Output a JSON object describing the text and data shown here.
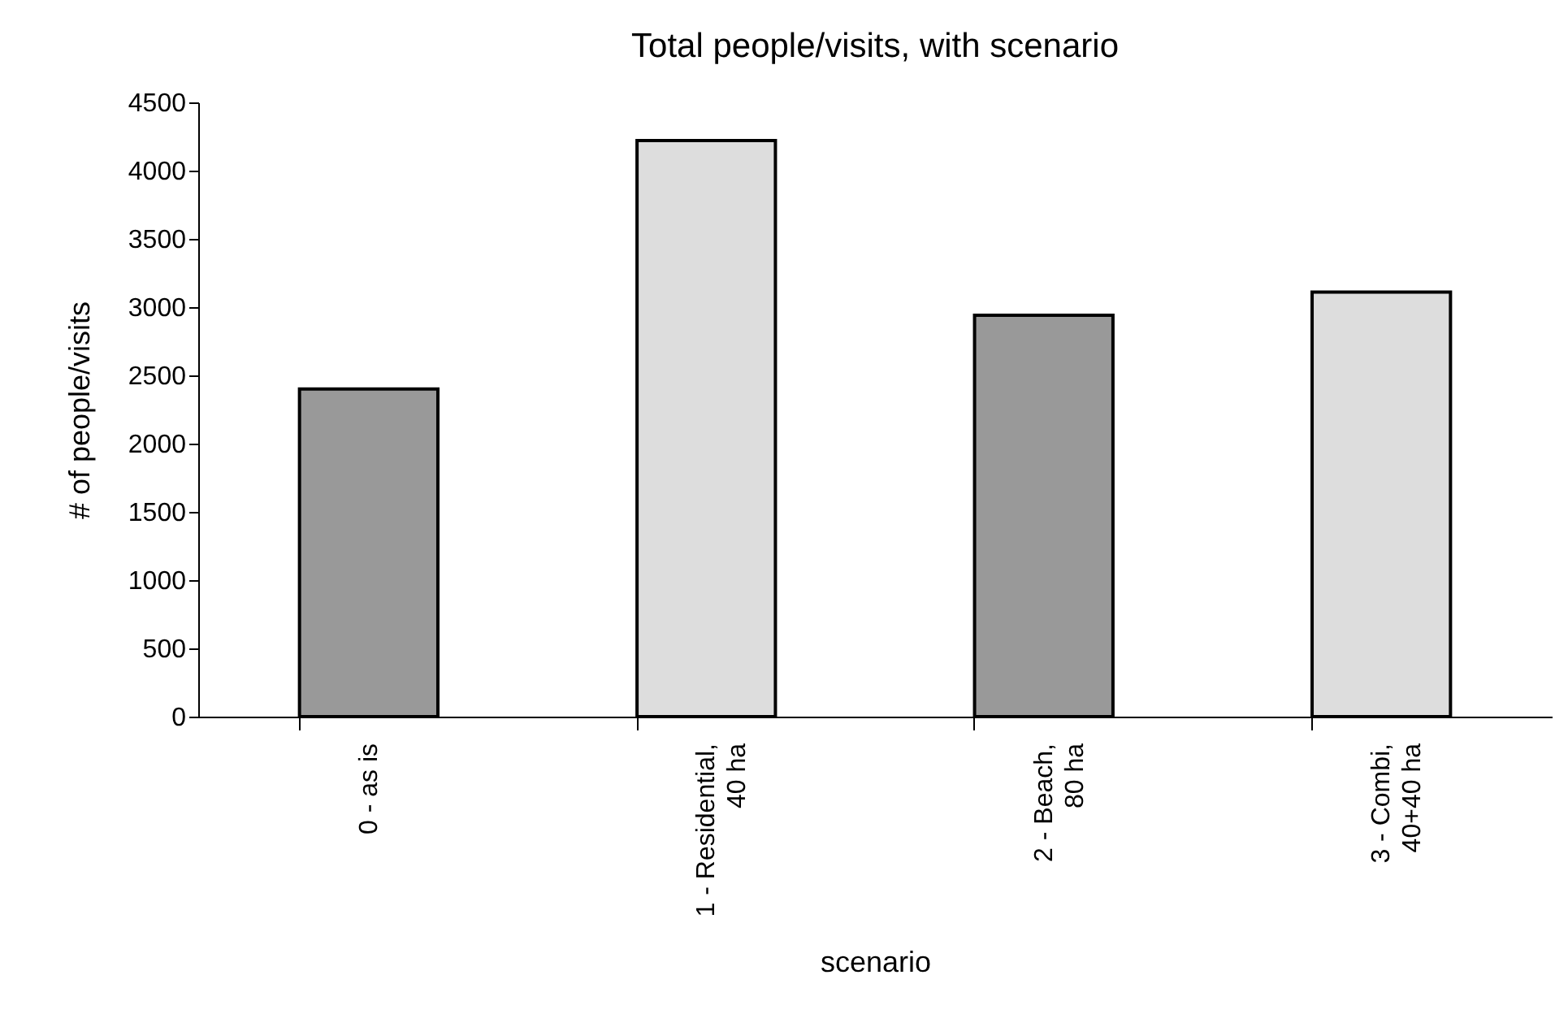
{
  "chart_data": {
    "type": "bar",
    "title": "Total people/visits, with scenario",
    "xlabel": "scenario",
    "ylabel": "# of people/visits",
    "categories": [
      "0 - as is",
      "1 - Residential, 40 ha",
      "2 - Beach, 80 ha",
      "3 - Combi, 40+40 ha"
    ],
    "values": [
      2400,
      4220,
      2940,
      3110
    ],
    "colors": [
      "#999999",
      "#dddddd",
      "#999999",
      "#dddddd"
    ],
    "ylim": [
      0,
      4500
    ],
    "yticks": [
      0,
      500,
      1000,
      1500,
      2000,
      2500,
      3000,
      3500,
      4000,
      4500
    ],
    "grid": false
  }
}
